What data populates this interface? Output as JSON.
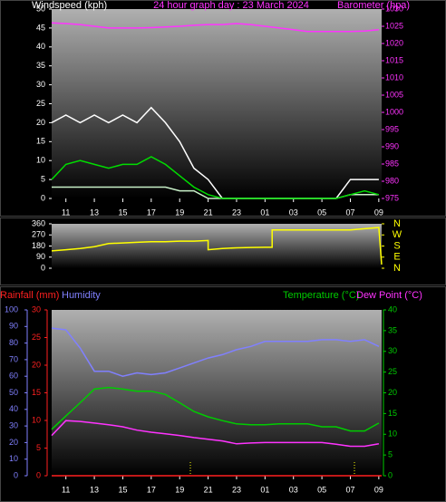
{
  "chart_data": [
    {
      "type": "line",
      "title": "24 hour graph day : 23 March 2024",
      "y_label": "Windspeed (kph)",
      "y2_label": "Barometer (hpa)",
      "xlim": [
        10,
        33.2
      ],
      "xticks": [
        11,
        13,
        15,
        17,
        19,
        21,
        23,
        {
          "value": 25,
          "label": "01"
        },
        {
          "value": 27,
          "label": "03"
        },
        {
          "value": 29,
          "label": "05"
        },
        {
          "value": 31,
          "label": "07"
        },
        {
          "value": 33,
          "label": "09"
        }
      ],
      "ylim": [
        0,
        50
      ],
      "yticks": [
        0,
        5,
        10,
        15,
        20,
        25,
        30,
        35,
        40,
        45,
        50
      ],
      "y2lim": [
        975,
        1030
      ],
      "y2ticks": [
        975,
        980,
        985,
        990,
        995,
        1000,
        1005,
        1010,
        1015,
        1020,
        1025,
        1030
      ],
      "x": [
        10,
        11,
        12,
        13,
        14,
        15,
        16,
        17,
        18,
        19,
        20,
        21,
        22,
        23,
        24,
        25,
        26,
        27,
        28,
        29,
        30,
        31,
        32,
        33
      ],
      "series": [
        {
          "color": "#ffffff",
          "values": [
            20,
            22,
            20,
            22,
            20,
            22,
            20,
            24,
            20,
            15,
            8,
            5,
            0,
            0,
            0,
            0,
            0,
            0,
            0,
            0,
            0,
            5,
            5,
            5
          ]
        },
        {
          "color": "#c8f0c8",
          "values": [
            3,
            3,
            3,
            3,
            3,
            3,
            3,
            3,
            3,
            2,
            2,
            0,
            0,
            0,
            0,
            0,
            0,
            0,
            0,
            0,
            0,
            1,
            1,
            1
          ]
        },
        {
          "color": "#00dd00",
          "values": [
            5,
            9,
            10,
            9,
            8,
            9,
            9,
            11,
            9,
            6,
            3,
            1,
            0,
            0,
            0,
            0,
            0,
            0,
            0,
            0,
            0,
            1,
            2,
            1
          ]
        },
        {
          "color": "#ff33ff",
          "axis": "y2",
          "values": [
            1026,
            1025.8,
            1025.5,
            1025,
            1024.5,
            1024.5,
            1024.5,
            1024.6,
            1024.8,
            1025,
            1025.3,
            1025.5,
            1025.5,
            1025.8,
            1025.5,
            1025,
            1024.5,
            1024,
            1023.5,
            1023.5,
            1023.5,
            1023.5,
            1023.6,
            1024
          ]
        }
      ]
    },
    {
      "type": "line",
      "xlim": [
        10,
        33.2
      ],
      "ylim": [
        0,
        360
      ],
      "yticks": [
        0,
        90,
        180,
        270,
        360
      ],
      "y2lim": [
        0,
        360
      ],
      "y2ticks": [
        {
          "value": 0,
          "label": "N"
        },
        {
          "value": 90,
          "label": "E"
        },
        {
          "value": 180,
          "label": "S"
        },
        {
          "value": 270,
          "label": "W"
        },
        {
          "value": 360,
          "label": "N"
        }
      ],
      "x": [
        10,
        11,
        12,
        13,
        14,
        15,
        16,
        17,
        18,
        19,
        20,
        21,
        21,
        22,
        23,
        24,
        25,
        25.5,
        25.5,
        27,
        29,
        31,
        32,
        33,
        33.2
      ],
      "series": [
        {
          "color": "#ffff00",
          "values": [
            140,
            150,
            160,
            175,
            200,
            205,
            210,
            215,
            215,
            220,
            220,
            225,
            150,
            160,
            165,
            168,
            170,
            170,
            310,
            310,
            310,
            310,
            320,
            330,
            30
          ]
        }
      ]
    },
    {
      "type": "line",
      "xlim": [
        10,
        33.2
      ],
      "xticks": [
        11,
        13,
        15,
        17,
        19,
        21,
        23,
        {
          "value": 25,
          "label": "01"
        },
        {
          "value": 27,
          "label": "03"
        },
        {
          "value": 29,
          "label": "05"
        },
        {
          "value": 31,
          "label": "07"
        },
        {
          "value": 33,
          "label": "09"
        }
      ],
      "ylim": [
        0,
        100
      ],
      "yticks": [
        0,
        10,
        20,
        30,
        40,
        50,
        60,
        70,
        80,
        90,
        100
      ],
      "y2lim": [
        0,
        40
      ],
      "y2ticks": [
        0,
        5,
        10,
        15,
        20,
        25,
        30,
        35,
        40
      ],
      "y3lim": [
        0,
        30
      ],
      "y3ticks": [
        0,
        5,
        10,
        15,
        20,
        25,
        30
      ],
      "x": [
        10,
        11,
        12,
        13,
        14,
        15,
        16,
        17,
        18,
        19,
        20,
        21,
        22,
        23,
        24,
        25,
        26,
        27,
        28,
        29,
        30,
        31,
        32,
        33
      ],
      "series": [
        {
          "name": "Rainfall (mm)",
          "color": "#ff2020",
          "axis": "y3",
          "x": [
            10,
            33.2
          ],
          "values": [
            0,
            0
          ]
        },
        {
          "name": "Humidity",
          "color": "#8080ff",
          "values": [
            89,
            88,
            77,
            63,
            63,
            60,
            62,
            61,
            62,
            65,
            68,
            71,
            73,
            76,
            78,
            81,
            81,
            81,
            81,
            82,
            82,
            81,
            82,
            78
          ]
        },
        {
          "name": "Temperature (°C)",
          "color": "#00cc00",
          "axis": "y2",
          "values": [
            11.2,
            14.4,
            17.6,
            20.9,
            21.3,
            20.9,
            20.4,
            20.4,
            19.6,
            17.6,
            15.5,
            14.2,
            13.3,
            12.5,
            12.3,
            12.3,
            12.5,
            12.5,
            12.5,
            11.8,
            11.8,
            10.8,
            10.8,
            12.7
          ]
        },
        {
          "name": "Dew Point (°C)",
          "color": "#ff33ff",
          "axis": "y2",
          "values": [
            9.7,
            13.3,
            13.1,
            12.7,
            12.3,
            11.8,
            11,
            10.5,
            10.1,
            9.7,
            9.2,
            8.8,
            8.4,
            7.7,
            7.9,
            8,
            8,
            8,
            8,
            8,
            7.6,
            7.1,
            7.1,
            7.7
          ]
        }
      ]
    }
  ]
}
